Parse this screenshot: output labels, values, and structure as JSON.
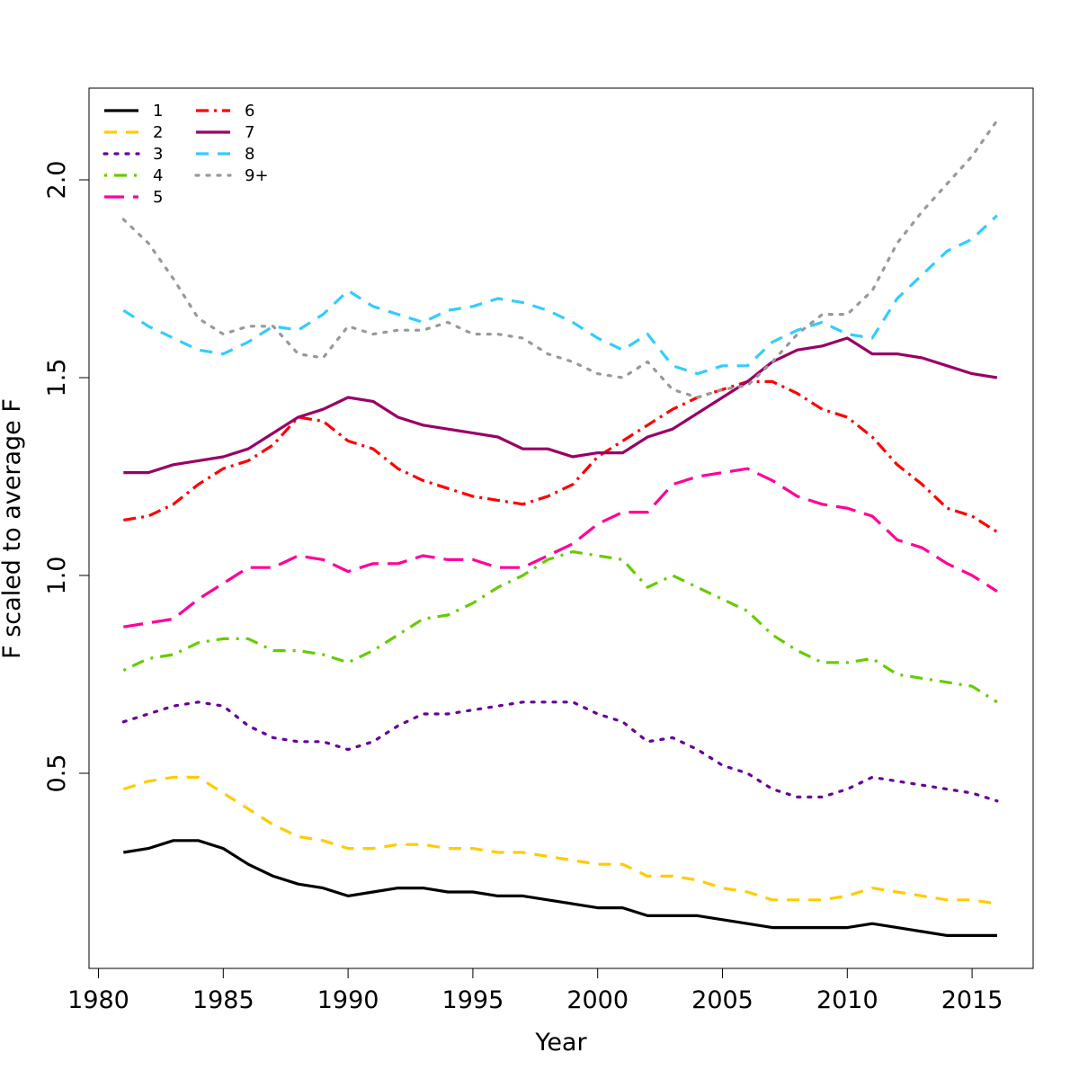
{
  "chart_data": {
    "type": "line",
    "title": "",
    "xlabel": "Year",
    "ylabel": "F scaled to average F",
    "xlim": [
      1980,
      2017
    ],
    "ylim": [
      0.05,
      2.2
    ],
    "xticks": [
      1980,
      1985,
      1990,
      1995,
      2000,
      2005,
      2010,
      2015
    ],
    "xtick_labels": [
      "1980",
      "1985",
      "1990",
      "1995",
      "2000",
      "2005",
      "2010",
      "2015"
    ],
    "yticks": [
      0.5,
      1.0,
      1.5,
      2.0
    ],
    "ytick_labels": [
      "0.5",
      "1.0",
      "1.5",
      "2.0"
    ],
    "grid": false,
    "legend_position": "top-left",
    "x": [
      1981,
      1982,
      1983,
      1984,
      1985,
      1986,
      1987,
      1988,
      1989,
      1990,
      1991,
      1992,
      1993,
      1994,
      1995,
      1996,
      1997,
      1998,
      1999,
      2000,
      2001,
      2002,
      2003,
      2004,
      2005,
      2006,
      2007,
      2008,
      2009,
      2010,
      2011,
      2012,
      2013,
      2014,
      2015,
      2016
    ],
    "series": [
      {
        "name": "1",
        "color": "#000000",
        "dash": "solid",
        "values": [
          0.3,
          0.31,
          0.33,
          0.33,
          0.31,
          0.27,
          0.24,
          0.22,
          0.21,
          0.19,
          0.2,
          0.21,
          0.21,
          0.2,
          0.2,
          0.19,
          0.19,
          0.18,
          0.17,
          0.16,
          0.16,
          0.14,
          0.14,
          0.14,
          0.13,
          0.12,
          0.11,
          0.11,
          0.11,
          0.11,
          0.12,
          0.11,
          0.1,
          0.09,
          0.09,
          0.09
        ]
      },
      {
        "name": "2",
        "color": "#FFCC00",
        "dash": "dashed",
        "values": [
          0.46,
          0.48,
          0.49,
          0.49,
          0.45,
          0.41,
          0.37,
          0.34,
          0.33,
          0.31,
          0.31,
          0.32,
          0.32,
          0.31,
          0.31,
          0.3,
          0.3,
          0.29,
          0.28,
          0.27,
          0.27,
          0.24,
          0.24,
          0.23,
          0.21,
          0.2,
          0.18,
          0.18,
          0.18,
          0.19,
          0.21,
          0.2,
          0.19,
          0.18,
          0.18,
          0.17
        ]
      },
      {
        "name": "3",
        "color": "#660099",
        "dash": "dotted",
        "values": [
          0.63,
          0.65,
          0.67,
          0.68,
          0.67,
          0.62,
          0.59,
          0.58,
          0.58,
          0.56,
          0.58,
          0.62,
          0.65,
          0.65,
          0.66,
          0.67,
          0.68,
          0.68,
          0.68,
          0.65,
          0.63,
          0.58,
          0.59,
          0.56,
          0.52,
          0.5,
          0.46,
          0.44,
          0.44,
          0.46,
          0.49,
          0.48,
          0.47,
          0.46,
          0.45,
          0.43
        ]
      },
      {
        "name": "4",
        "color": "#66CC00",
        "dash": "dotdash",
        "values": [
          0.76,
          0.79,
          0.8,
          0.83,
          0.84,
          0.84,
          0.81,
          0.81,
          0.8,
          0.78,
          0.81,
          0.85,
          0.89,
          0.9,
          0.93,
          0.97,
          1.0,
          1.04,
          1.06,
          1.05,
          1.04,
          0.97,
          1.0,
          0.97,
          0.94,
          0.91,
          0.85,
          0.81,
          0.78,
          0.78,
          0.79,
          0.75,
          0.74,
          0.73,
          0.72,
          0.68
        ]
      },
      {
        "name": "5",
        "color": "#FF0099",
        "dash": "longdash",
        "values": [
          0.87,
          0.88,
          0.89,
          0.94,
          0.98,
          1.02,
          1.02,
          1.05,
          1.04,
          1.01,
          1.03,
          1.03,
          1.05,
          1.04,
          1.04,
          1.02,
          1.02,
          1.05,
          1.08,
          1.13,
          1.16,
          1.16,
          1.23,
          1.25,
          1.26,
          1.27,
          1.24,
          1.2,
          1.18,
          1.17,
          1.15,
          1.09,
          1.07,
          1.03,
          1.0,
          0.96
        ]
      },
      {
        "name": "6",
        "color": "#FF0000",
        "dash": "twodash",
        "values": [
          1.14,
          1.15,
          1.18,
          1.23,
          1.27,
          1.29,
          1.33,
          1.4,
          1.39,
          1.34,
          1.32,
          1.27,
          1.24,
          1.22,
          1.2,
          1.19,
          1.18,
          1.2,
          1.23,
          1.3,
          1.34,
          1.38,
          1.42,
          1.45,
          1.47,
          1.49,
          1.49,
          1.46,
          1.42,
          1.4,
          1.35,
          1.28,
          1.23,
          1.17,
          1.15,
          1.11
        ]
      },
      {
        "name": "7",
        "color": "#990066",
        "dash": "solid",
        "values": [
          1.26,
          1.26,
          1.28,
          1.29,
          1.3,
          1.32,
          1.36,
          1.4,
          1.42,
          1.45,
          1.44,
          1.4,
          1.38,
          1.37,
          1.36,
          1.35,
          1.32,
          1.32,
          1.3,
          1.31,
          1.31,
          1.35,
          1.37,
          1.41,
          1.45,
          1.49,
          1.54,
          1.57,
          1.58,
          1.6,
          1.56,
          1.56,
          1.55,
          1.53,
          1.51,
          1.5
        ]
      },
      {
        "name": "8",
        "color": "#33CCFF",
        "dash": "dashed",
        "values": [
          1.67,
          1.63,
          1.6,
          1.57,
          1.56,
          1.59,
          1.63,
          1.62,
          1.66,
          1.72,
          1.68,
          1.66,
          1.64,
          1.67,
          1.68,
          1.7,
          1.69,
          1.67,
          1.64,
          1.6,
          1.57,
          1.61,
          1.53,
          1.51,
          1.53,
          1.53,
          1.59,
          1.62,
          1.64,
          1.61,
          1.6,
          1.7,
          1.76,
          1.82,
          1.85,
          1.91
        ]
      },
      {
        "name": "9+",
        "color": "#999999",
        "dash": "dotted",
        "values": [
          1.9,
          1.84,
          1.75,
          1.65,
          1.61,
          1.63,
          1.63,
          1.56,
          1.55,
          1.63,
          1.61,
          1.62,
          1.62,
          1.64,
          1.61,
          1.61,
          1.6,
          1.56,
          1.54,
          1.51,
          1.5,
          1.54,
          1.47,
          1.45,
          1.47,
          1.48,
          1.54,
          1.61,
          1.66,
          1.66,
          1.72,
          1.84,
          1.92,
          1.99,
          2.06,
          2.15
        ]
      }
    ]
  }
}
